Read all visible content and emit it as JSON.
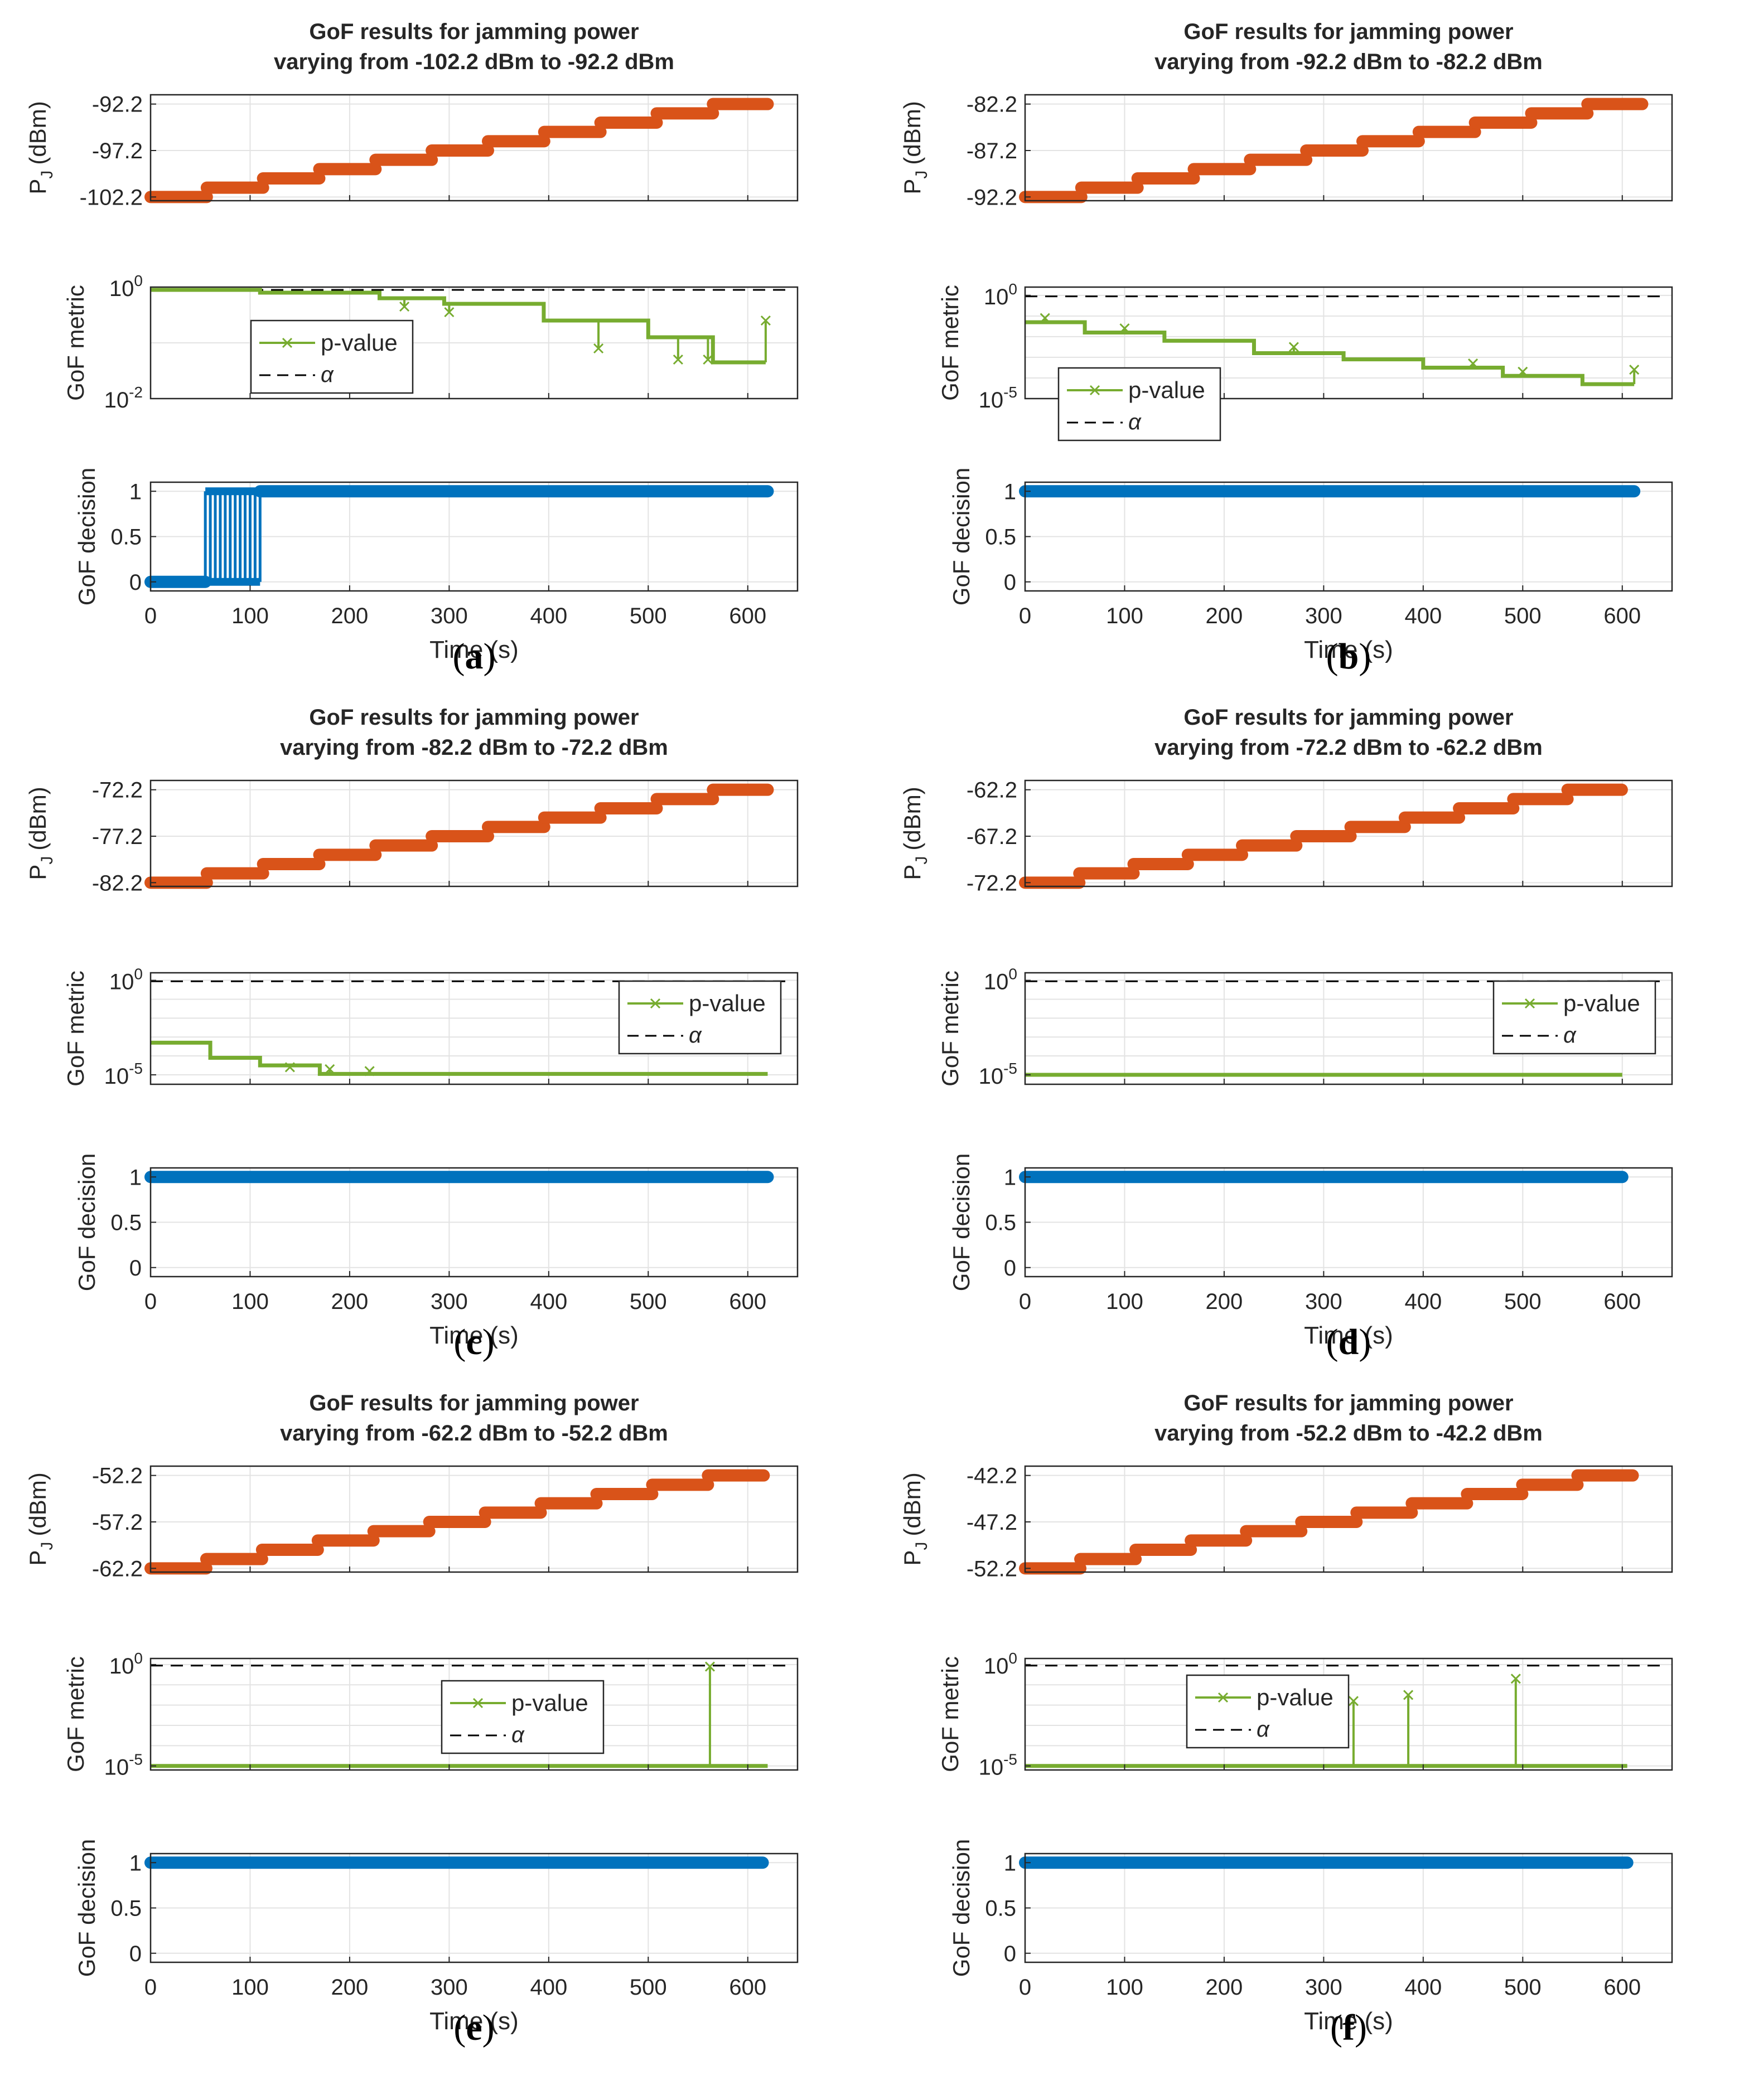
{
  "chart_data": [
    {
      "id": "a",
      "type": "line",
      "panel_label": "a",
      "title_line1": "GoF results for jamming power",
      "title_line2": "varying from -102.2 dBm to -92.2 dBm",
      "x": {
        "label": "Time (s)",
        "range": [
          0,
          650
        ],
        "ticks": [
          0,
          100,
          200,
          300,
          400,
          500,
          600
        ],
        "tick_labels": [
          "0",
          "100",
          "200",
          "300",
          "400",
          "500",
          "600"
        ]
      },
      "power": {
        "ylabel": "P",
        "ylabel_sub": "J",
        "ylabel_unit": "(dBm)",
        "ylim": [
          -102.6,
          -91.2
        ],
        "ticks": [
          -102.2,
          -97.2,
          -92.2
        ],
        "tick_labels": [
          "-102.2",
          "-97.2",
          "-92.2"
        ],
        "start": -102.2,
        "step": 1,
        "levels": 11,
        "step_duration": 56.5,
        "duration": 620,
        "color": "#d95319"
      },
      "metric": {
        "ylabel": "GoF metric",
        "scale": "log",
        "ylim_exp": [
          -2,
          0
        ],
        "tick_exps": [
          -2,
          0
        ],
        "tick_labels": [
          "10",
          "10"
        ],
        "tick_sups": [
          "-2",
          "0"
        ],
        "alpha_exp": -0.05,
        "series_name": "p-value",
        "alpha_name": "α",
        "legend_position": "center-left",
        "color": "#77ac30",
        "segments": [
          [
            0,
            110,
            -0.05
          ],
          [
            110,
            230,
            -0.1
          ],
          [
            230,
            295,
            -0.2
          ],
          [
            295,
            395,
            -0.3
          ],
          [
            395,
            500,
            -0.6
          ],
          [
            500,
            565,
            -0.9
          ],
          [
            565,
            618,
            -1.35
          ]
        ],
        "spikes": [
          [
            255,
            -0.35
          ],
          [
            300,
            -0.45
          ],
          [
            450,
            -1.1
          ],
          [
            530,
            -1.3
          ],
          [
            560,
            -1.3
          ],
          [
            618,
            -0.6
          ]
        ]
      },
      "decision": {
        "ylabel": "GoF decision",
        "ylim": [
          -0.1,
          1.1
        ],
        "ticks": [
          0,
          0.5,
          1
        ],
        "tick_labels": [
          "0",
          "0.5",
          "1"
        ],
        "color": "#0072bd",
        "switch_start": 55,
        "switch_end": 110,
        "duration": 620
      }
    },
    {
      "id": "b",
      "type": "line",
      "panel_label": "b",
      "title_line1": "GoF results for jamming power",
      "title_line2": "varying from -92.2 dBm to -82.2 dBm",
      "x": {
        "label": "Time (s)",
        "range": [
          0,
          650
        ],
        "ticks": [
          0,
          100,
          200,
          300,
          400,
          500,
          600
        ],
        "tick_labels": [
          "0",
          "100",
          "200",
          "300",
          "400",
          "500",
          "600"
        ]
      },
      "power": {
        "ylabel": "P",
        "ylabel_sub": "J",
        "ylabel_unit": "(dBm)",
        "ylim": [
          -92.6,
          -81.2
        ],
        "ticks": [
          -92.2,
          -87.2,
          -82.2
        ],
        "tick_labels": [
          "-92.2",
          "-87.2",
          "-82.2"
        ],
        "start": -92.2,
        "step": 1,
        "levels": 11,
        "step_duration": 56.5,
        "duration": 620,
        "color": "#d95319"
      },
      "metric": {
        "ylabel": "GoF metric",
        "scale": "log",
        "ylim_exp": [
          -5,
          0.4
        ],
        "tick_exps": [
          -5,
          0
        ],
        "tick_labels": [
          "10",
          "10"
        ],
        "tick_sups": [
          "-5",
          "0"
        ],
        "alpha_exp": -0.05,
        "series_name": "p-value",
        "alpha_name": "α",
        "legend_position": "bottom-left",
        "color": "#77ac30",
        "segments": [
          [
            0,
            60,
            -1.3
          ],
          [
            60,
            140,
            -1.8
          ],
          [
            140,
            230,
            -2.2
          ],
          [
            230,
            320,
            -2.8
          ],
          [
            320,
            400,
            -3.1
          ],
          [
            400,
            480,
            -3.5
          ],
          [
            480,
            560,
            -3.9
          ],
          [
            560,
            612,
            -4.3
          ]
        ],
        "spikes": [
          [
            20,
            -1.1
          ],
          [
            100,
            -1.6
          ],
          [
            270,
            -2.5
          ],
          [
            450,
            -3.3
          ],
          [
            500,
            -3.7
          ],
          [
            612,
            -3.6
          ]
        ]
      },
      "decision": {
        "ylabel": "GoF decision",
        "ylim": [
          -0.1,
          1.1
        ],
        "ticks": [
          0,
          0.5,
          1
        ],
        "tick_labels": [
          "0",
          "0.5",
          "1"
        ],
        "color": "#0072bd",
        "switch_start": 0,
        "switch_end": 0,
        "duration": 612
      }
    },
    {
      "id": "c",
      "type": "line",
      "panel_label": "c",
      "title_line1": "GoF results for jamming power",
      "title_line2": "varying from -82.2 dBm to -72.2 dBm",
      "x": {
        "label": "Time (s)",
        "range": [
          0,
          650
        ],
        "ticks": [
          0,
          100,
          200,
          300,
          400,
          500,
          600
        ],
        "tick_labels": [
          "0",
          "100",
          "200",
          "300",
          "400",
          "500",
          "600"
        ]
      },
      "power": {
        "ylabel": "P",
        "ylabel_sub": "J",
        "ylabel_unit": "(dBm)",
        "ylim": [
          -82.6,
          -71.2
        ],
        "ticks": [
          -82.2,
          -77.2,
          -72.2
        ],
        "tick_labels": [
          "-82.2",
          "-77.2",
          "-72.2"
        ],
        "start": -82.2,
        "step": 1,
        "levels": 11,
        "step_duration": 56.5,
        "duration": 620,
        "color": "#d95319"
      },
      "metric": {
        "ylabel": "GoF metric",
        "scale": "log",
        "ylim_exp": [
          -5.5,
          0.4
        ],
        "tick_exps": [
          -5,
          0
        ],
        "tick_labels": [
          "10",
          "10"
        ],
        "tick_sups": [
          "-5",
          "0"
        ],
        "alpha_exp": -0.05,
        "series_name": "p-value",
        "alpha_name": "α",
        "legend_position": "top-right",
        "color": "#77ac30",
        "segments": [
          [
            0,
            60,
            -3.3
          ],
          [
            60,
            110,
            -4.1
          ],
          [
            110,
            170,
            -4.5
          ],
          [
            170,
            620,
            -4.95
          ]
        ],
        "spikes": [
          [
            140,
            -4.6
          ],
          [
            180,
            -4.7
          ],
          [
            220,
            -4.8
          ]
        ]
      },
      "decision": {
        "ylabel": "GoF decision",
        "ylim": [
          -0.1,
          1.1
        ],
        "ticks": [
          0,
          0.5,
          1
        ],
        "tick_labels": [
          "0",
          "0.5",
          "1"
        ],
        "color": "#0072bd",
        "switch_start": 0,
        "switch_end": 0,
        "duration": 620
      }
    },
    {
      "id": "d",
      "type": "line",
      "panel_label": "d",
      "title_line1": "GoF results for jamming power",
      "title_line2": "varying from -72.2 dBm to -62.2 dBm",
      "x": {
        "label": "Time (s)",
        "range": [
          0,
          650
        ],
        "ticks": [
          0,
          100,
          200,
          300,
          400,
          500,
          600
        ],
        "tick_labels": [
          "0",
          "100",
          "200",
          "300",
          "400",
          "500",
          "600"
        ]
      },
      "power": {
        "ylabel": "P",
        "ylabel_sub": "J",
        "ylabel_unit": "(dBm)",
        "ylim": [
          -72.6,
          -61.2
        ],
        "ticks": [
          -72.2,
          -67.2,
          -62.2
        ],
        "tick_labels": [
          "-72.2",
          "-67.2",
          "-62.2"
        ],
        "start": -72.2,
        "step": 1,
        "levels": 11,
        "step_duration": 54.5,
        "duration": 600,
        "color": "#d95319"
      },
      "metric": {
        "ylabel": "GoF metric",
        "scale": "log",
        "ylim_exp": [
          -5.5,
          0.4
        ],
        "tick_exps": [
          -5,
          0
        ],
        "tick_labels": [
          "10",
          "10"
        ],
        "tick_sups": [
          "-5",
          "0"
        ],
        "alpha_exp": -0.05,
        "series_name": "p-value",
        "alpha_name": "α",
        "legend_position": "top-right",
        "color": "#77ac30",
        "segments": [
          [
            0,
            600,
            -5
          ]
        ],
        "spikes": []
      },
      "decision": {
        "ylabel": "GoF decision",
        "ylim": [
          -0.1,
          1.1
        ],
        "ticks": [
          0,
          0.5,
          1
        ],
        "tick_labels": [
          "0",
          "0.5",
          "1"
        ],
        "color": "#0072bd",
        "switch_start": 0,
        "switch_end": 0,
        "duration": 600
      }
    },
    {
      "id": "e",
      "type": "line",
      "panel_label": "e",
      "title_line1": "GoF results for jamming power",
      "title_line2": "varying from -62.2 dBm to -52.2 dBm",
      "x": {
        "label": "Time (s)",
        "range": [
          0,
          650
        ],
        "ticks": [
          0,
          100,
          200,
          300,
          400,
          500,
          600
        ],
        "tick_labels": [
          "0",
          "100",
          "200",
          "300",
          "400",
          "500",
          "600"
        ]
      },
      "power": {
        "ylabel": "P",
        "ylabel_sub": "J",
        "ylabel_unit": "(dBm)",
        "ylim": [
          -62.6,
          -51.2
        ],
        "ticks": [
          -62.2,
          -57.2,
          -52.2
        ],
        "tick_labels": [
          "-62.2",
          "-57.2",
          "-52.2"
        ],
        "start": -62.2,
        "step": 1,
        "levels": 11,
        "step_duration": 56,
        "duration": 620,
        "color": "#d95319"
      },
      "metric": {
        "ylabel": "GoF metric",
        "scale": "log",
        "ylim_exp": [
          -5.2,
          0.3
        ],
        "tick_exps": [
          -5,
          0
        ],
        "tick_labels": [
          "10",
          "10"
        ],
        "tick_sups": [
          "-5",
          "0"
        ],
        "alpha_exp": -0.05,
        "series_name": "p-value",
        "alpha_name": "α",
        "legend_position": "top-center",
        "color": "#77ac30",
        "segments": [
          [
            0,
            620,
            -5
          ]
        ],
        "spikes": [
          [
            562,
            -0.1
          ]
        ]
      },
      "decision": {
        "ylabel": "GoF decision",
        "ylim": [
          -0.1,
          1.1
        ],
        "ticks": [
          0,
          0.5,
          1
        ],
        "tick_labels": [
          "0",
          "0.5",
          "1"
        ],
        "color": "#0072bd",
        "switch_start": 0,
        "switch_end": 0,
        "duration": 615
      }
    },
    {
      "id": "f",
      "type": "line",
      "panel_label": "f",
      "title_line1": "GoF results for jamming power",
      "title_line2": "varying from -52.2 dBm to -42.2 dBm",
      "x": {
        "label": "Time (s)",
        "range": [
          0,
          650
        ],
        "ticks": [
          0,
          100,
          200,
          300,
          400,
          500,
          600
        ],
        "tick_labels": [
          "0",
          "100",
          "200",
          "300",
          "400",
          "500",
          "600"
        ]
      },
      "power": {
        "ylabel": "P",
        "ylabel_sub": "J",
        "ylabel_unit": "(dBm)",
        "ylim": [
          -52.6,
          -41.2
        ],
        "ticks": [
          -52.2,
          -47.2,
          -42.2
        ],
        "tick_labels": [
          "-52.2",
          "-47.2",
          "-42.2"
        ],
        "start": -52.2,
        "step": 1,
        "levels": 11,
        "step_duration": 55.5,
        "duration": 612,
        "color": "#d95319"
      },
      "metric": {
        "ylabel": "GoF metric",
        "scale": "log",
        "ylim_exp": [
          -5.2,
          0.3
        ],
        "tick_exps": [
          -5,
          0
        ],
        "tick_labels": [
          "10",
          "10"
        ],
        "tick_sups": [
          "-5",
          "0"
        ],
        "alpha_exp": -0.05,
        "series_name": "p-value",
        "alpha_name": "α",
        "legend_position": "top-left",
        "color": "#77ac30",
        "segments": [
          [
            0,
            605,
            -5
          ]
        ],
        "spikes": [
          [
            330,
            -1.8
          ],
          [
            385,
            -1.5
          ],
          [
            493,
            -0.7
          ]
        ]
      },
      "decision": {
        "ylabel": "GoF decision",
        "ylim": [
          -0.1,
          1.1
        ],
        "ticks": [
          0,
          0.5,
          1
        ],
        "tick_labels": [
          "0",
          "0.5",
          "1"
        ],
        "color": "#0072bd",
        "switch_start": 0,
        "switch_end": 0,
        "duration": 605
      }
    }
  ]
}
